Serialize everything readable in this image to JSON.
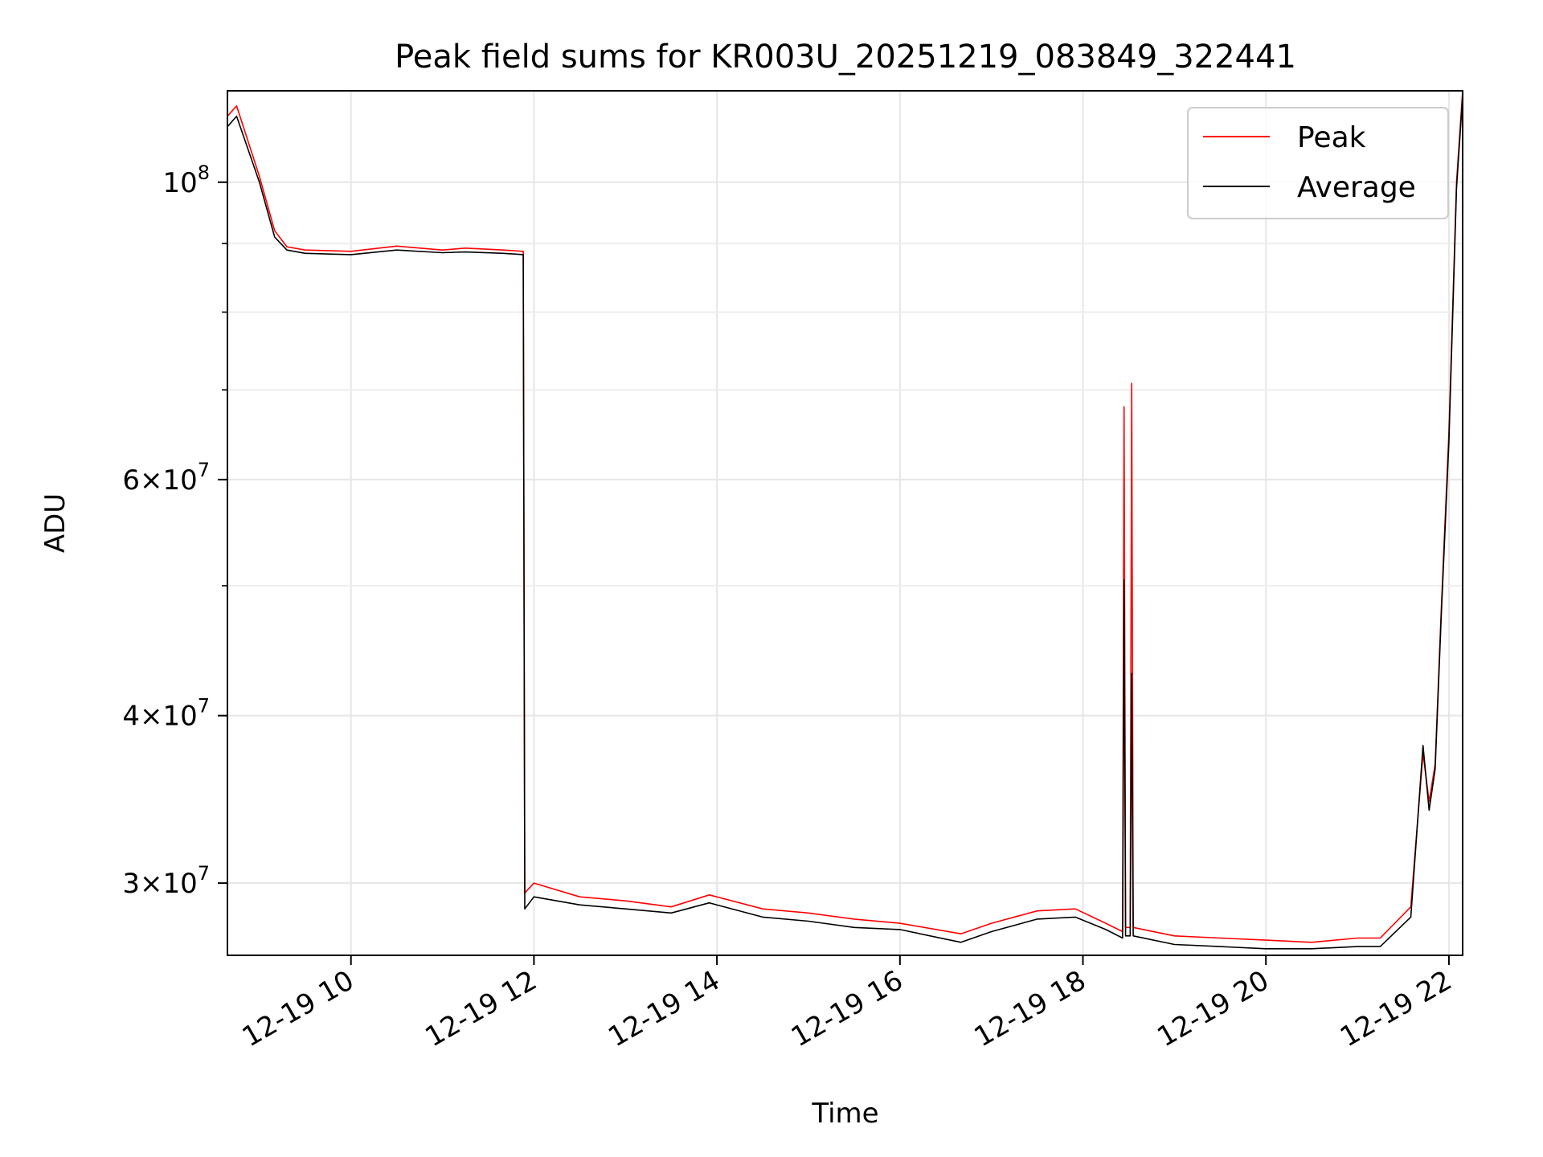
{
  "chart_data": {
    "type": "line",
    "title": "Peak field sums for KR003U_20251219_083849_322441",
    "xlabel": "Time",
    "ylabel": "ADU",
    "yscale": "log",
    "grid": true,
    "legend_position": "upper-right",
    "xlim": [
      "2025-12-19 08:39",
      "2025-12-19 22:09"
    ],
    "ylim": [
      26500000,
      117000000
    ],
    "x_ticks": [
      {
        "t": "2025-12-19 10:00",
        "label": "12-19 10"
      },
      {
        "t": "2025-12-19 12:00",
        "label": "12-19 12"
      },
      {
        "t": "2025-12-19 14:00",
        "label": "12-19 14"
      },
      {
        "t": "2025-12-19 16:00",
        "label": "12-19 16"
      },
      {
        "t": "2025-12-19 18:00",
        "label": "12-19 18"
      },
      {
        "t": "2025-12-19 20:00",
        "label": "12-19 20"
      },
      {
        "t": "2025-12-19 22:00",
        "label": "12-19 22"
      }
    ],
    "y_major_ticks": [
      {
        "value": 30000000,
        "mantissa": "3",
        "exponent": "7"
      },
      {
        "value": 40000000,
        "mantissa": "4",
        "exponent": "7"
      },
      {
        "value": 60000000,
        "mantissa": "6",
        "exponent": "7"
      },
      {
        "value": 100000000,
        "mantissa": "",
        "exponent": "8"
      }
    ],
    "y_minor_ticks": [
      50000000,
      70000000,
      80000000,
      90000000
    ],
    "series": [
      {
        "name": "Peak",
        "color": "#ff0000",
        "x": [
          "2025-12-19 08:39",
          "2025-12-19 08:45",
          "2025-12-19 09:00",
          "2025-12-19 09:10",
          "2025-12-19 09:18",
          "2025-12-19 09:30",
          "2025-12-19 10:00",
          "2025-12-19 10:30",
          "2025-12-19 11:00",
          "2025-12-19 11:15",
          "2025-12-19 11:40",
          "2025-12-19 11:53",
          "2025-12-19 11:54",
          "2025-12-19 12:00",
          "2025-12-19 12:30",
          "2025-12-19 13:00",
          "2025-12-19 13:30",
          "2025-12-19 13:55",
          "2025-12-19 14:30",
          "2025-12-19 15:00",
          "2025-12-19 15:30",
          "2025-12-19 16:00",
          "2025-12-19 16:40",
          "2025-12-19 17:00",
          "2025-12-19 17:30",
          "2025-12-19 17:55",
          "2025-12-19 18:15",
          "2025-12-19 18:26",
          "2025-12-19 18:27",
          "2025-12-19 18:28",
          "2025-12-19 18:31",
          "2025-12-19 18:32",
          "2025-12-19 18:33",
          "2025-12-19 19:00",
          "2025-12-19 19:30",
          "2025-12-19 20:00",
          "2025-12-19 20:30",
          "2025-12-19 21:00",
          "2025-12-19 21:15",
          "2025-12-19 21:35",
          "2025-12-19 21:43",
          "2025-12-19 21:47",
          "2025-12-19 21:51",
          "2025-12-19 21:55",
          "2025-12-19 22:00",
          "2025-12-19 22:05",
          "2025-12-19 22:09"
        ],
        "values": [
          112000000,
          114000000,
          101000000,
          92000000,
          89500000,
          89000000,
          88800000,
          89600000,
          89000000,
          89300000,
          89000000,
          88800000,
          29500000,
          30000000,
          29300000,
          29100000,
          28800000,
          29400000,
          28700000,
          28500000,
          28200000,
          28000000,
          27500000,
          28000000,
          28600000,
          28700000,
          28000000,
          27600000,
          68000000,
          27800000,
          27800000,
          70800000,
          27800000,
          27400000,
          27300000,
          27200000,
          27100000,
          27300000,
          27300000,
          28800000,
          37500000,
          34500000,
          36800000,
          48000000,
          65000000,
          100000000,
          117000000
        ]
      },
      {
        "name": "Average",
        "color": "#000000",
        "x": [
          "2025-12-19 08:39",
          "2025-12-19 08:45",
          "2025-12-19 09:00",
          "2025-12-19 09:10",
          "2025-12-19 09:18",
          "2025-12-19 09:30",
          "2025-12-19 10:00",
          "2025-12-19 10:30",
          "2025-12-19 11:00",
          "2025-12-19 11:15",
          "2025-12-19 11:40",
          "2025-12-19 11:53",
          "2025-12-19 11:54",
          "2025-12-19 12:00",
          "2025-12-19 12:30",
          "2025-12-19 13:00",
          "2025-12-19 13:30",
          "2025-12-19 13:55",
          "2025-12-19 14:30",
          "2025-12-19 15:00",
          "2025-12-19 15:30",
          "2025-12-19 16:00",
          "2025-12-19 16:40",
          "2025-12-19 17:00",
          "2025-12-19 17:30",
          "2025-12-19 17:55",
          "2025-12-19 18:15",
          "2025-12-19 18:26",
          "2025-12-19 18:27",
          "2025-12-19 18:28",
          "2025-12-19 18:31",
          "2025-12-19 18:32",
          "2025-12-19 18:33",
          "2025-12-19 19:00",
          "2025-12-19 19:30",
          "2025-12-19 20:00",
          "2025-12-19 20:30",
          "2025-12-19 21:00",
          "2025-12-19 21:15",
          "2025-12-19 21:35",
          "2025-12-19 21:43",
          "2025-12-19 21:47",
          "2025-12-19 21:51",
          "2025-12-19 21:55",
          "2025-12-19 22:00",
          "2025-12-19 22:05",
          "2025-12-19 22:09"
        ],
        "values": [
          110000000,
          112000000,
          100000000,
          91000000,
          89000000,
          88500000,
          88300000,
          89000000,
          88600000,
          88700000,
          88500000,
          88300000,
          28700000,
          29300000,
          28900000,
          28700000,
          28500000,
          29000000,
          28300000,
          28100000,
          27800000,
          27700000,
          27100000,
          27600000,
          28200000,
          28300000,
          27700000,
          27300000,
          50500000,
          27400000,
          27400000,
          43000000,
          27400000,
          27000000,
          26900000,
          26800000,
          26800000,
          26900000,
          26900000,
          28300000,
          38000000,
          34000000,
          36500000,
          47500000,
          64000000,
          99000000,
          116000000
        ]
      }
    ]
  }
}
